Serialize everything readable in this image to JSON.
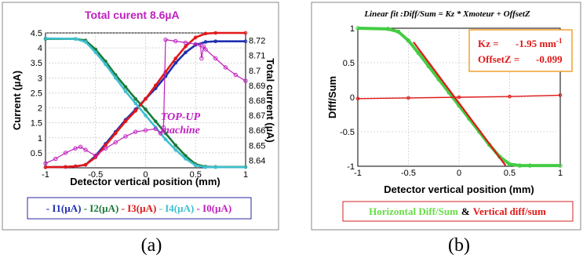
{
  "chart_data": [
    {
      "type": "line",
      "title": "Total curent 8.6µA",
      "xlabel": "Detector vertical position (mm)",
      "ylabel": "Current (µA)",
      "y2label": "Total current (µA)",
      "xlim": [
        -1,
        1
      ],
      "ylim": [
        0,
        4.5
      ],
      "y2lim": [
        8.635,
        8.725
      ],
      "x_ticks": [
        "-1",
        "-0.5",
        "0",
        "0.5",
        "1"
      ],
      "y_ticks": [
        "0.5",
        "1",
        "1.5",
        "2",
        "2.5",
        "3",
        "3.5",
        "4",
        "4.5"
      ],
      "y2_ticks": [
        "8.64",
        "8.65",
        "8.66",
        "8.67",
        "8.68",
        "8.69",
        "8.7",
        "8.71",
        "8.72"
      ],
      "annotations": [
        "TOP-UP",
        "machine"
      ],
      "legend": {
        "placement": "bottom-outside",
        "items": [
          "I1(µA)",
          "I2(µA)",
          "I3(µA)",
          "I4(µA)",
          "I0(µA)"
        ]
      },
      "series": [
        {
          "name": "I1(µA)",
          "color": "#1f2fb0",
          "axis": "left",
          "x": [
            -1,
            -0.8,
            -0.7,
            -0.6,
            -0.5,
            -0.4,
            -0.3,
            -0.2,
            -0.1,
            0,
            0.1,
            0.2,
            0.3,
            0.4,
            0.5,
            0.6,
            0.7,
            1
          ],
          "y": [
            0.02,
            0.03,
            0.05,
            0.1,
            0.4,
            0.8,
            1.2,
            1.6,
            1.95,
            2.3,
            2.65,
            3.05,
            3.5,
            3.85,
            4.1,
            4.2,
            4.22,
            4.22
          ]
        },
        {
          "name": "I2(µA)",
          "color": "#1a7a3a",
          "axis": "left",
          "x": [
            -1,
            -0.7,
            -0.6,
            -0.5,
            -0.4,
            -0.3,
            -0.2,
            -0.1,
            0,
            0.1,
            0.2,
            0.3,
            0.4,
            0.5,
            0.6,
            0.7,
            1
          ],
          "y": [
            4.3,
            4.3,
            4.25,
            3.95,
            3.55,
            3.1,
            2.7,
            2.3,
            1.95,
            1.55,
            1.15,
            0.75,
            0.4,
            0.12,
            0.04,
            0.03,
            0.03
          ]
        },
        {
          "name": "I3(µA)",
          "color": "#e01818",
          "axis": "left",
          "x": [
            -1,
            -0.8,
            -0.7,
            -0.6,
            -0.5,
            -0.4,
            -0.3,
            -0.2,
            -0.1,
            0,
            0.1,
            0.2,
            0.3,
            0.4,
            0.5,
            0.6,
            0.7,
            1
          ],
          "y": [
            0.02,
            0.03,
            0.05,
            0.1,
            0.35,
            0.75,
            1.15,
            1.55,
            1.9,
            2.3,
            2.75,
            3.2,
            3.65,
            4.05,
            4.35,
            4.48,
            4.5,
            4.5
          ]
        },
        {
          "name": "I4(µA)",
          "color": "#3fbfcf",
          "axis": "left",
          "x": [
            -1,
            -0.7,
            -0.6,
            -0.5,
            -0.4,
            -0.3,
            -0.2,
            -0.1,
            0,
            0.1,
            0.2,
            0.3,
            0.4,
            0.5,
            0.6,
            0.7,
            1
          ],
          "y": [
            4.32,
            4.3,
            4.2,
            3.85,
            3.45,
            3.0,
            2.55,
            2.15,
            1.75,
            1.35,
            0.95,
            0.6,
            0.3,
            0.08,
            0.02,
            0.02,
            0.02
          ]
        },
        {
          "name": "I0(µA)",
          "color": "#c020c0",
          "axis": "right",
          "x": [
            -1,
            -0.9,
            -0.8,
            -0.7,
            -0.65,
            -0.6,
            -0.5,
            -0.4,
            -0.3,
            -0.2,
            -0.1,
            0,
            0.1,
            0.15,
            0.18,
            0.2,
            0.3,
            0.4,
            0.5,
            0.55,
            0.56,
            0.58,
            0.6,
            0.7,
            0.8,
            0.9,
            1
          ],
          "y": [
            8.638,
            8.641,
            8.645,
            8.648,
            8.649,
            8.647,
            8.643,
            8.648,
            8.652,
            8.656,
            8.659,
            8.66,
            8.661,
            8.658,
            8.662,
            8.7205,
            8.7195,
            8.7185,
            8.7175,
            8.717,
            8.708,
            8.716,
            8.714,
            8.708,
            8.702,
            8.697,
            8.693
          ]
        }
      ]
    },
    {
      "type": "line",
      "title": "Linear fit :Diff/Sum = Kz * Xmoteur + OffsetZ",
      "xlabel": "Detector vertical position (mm)",
      "ylabel": "Dfff/Sum",
      "xlim": [
        -1,
        1
      ],
      "ylim": [
        -1,
        1
      ],
      "x_ticks": [
        "-1",
        "-0.5",
        "0",
        "0.5",
        "1"
      ],
      "y_ticks": [
        "-1",
        "-0.5",
        "0",
        "0.5",
        "1"
      ],
      "fit_box": {
        "kz_label": "Kz =",
        "kz_value": "-1.95 mm",
        "kz_unit_sup": "-1",
        "offset_label": "OffsetZ =",
        "offset_value": "-0.099"
      },
      "legend": {
        "placement": "bottom-outside",
        "items": [
          {
            "text": "Horizontal Diff/Sum",
            "color": "#66dd44"
          },
          {
            "text": "&",
            "color": "#000000"
          },
          {
            "text": "Vertical diff/sum",
            "color": "#e01818"
          }
        ]
      },
      "series": [
        {
          "name": "Horizontal Diff/Sum",
          "color": "#44cc44",
          "x": [
            -1,
            -0.7,
            -0.6,
            -0.5,
            -0.4,
            -0.3,
            -0.2,
            -0.1,
            0,
            0.1,
            0.2,
            0.3,
            0.4,
            0.5,
            0.6,
            0.7,
            1
          ],
          "y": [
            1,
            0.99,
            0.95,
            0.82,
            0.64,
            0.45,
            0.26,
            0.07,
            -0.12,
            -0.31,
            -0.5,
            -0.69,
            -0.86,
            -0.97,
            -0.99,
            -0.99,
            -0.99
          ]
        },
        {
          "name": "Vertical diff/sum",
          "color": "#e01818",
          "x": [
            -1,
            -0.5,
            0,
            0.5,
            1
          ],
          "y": [
            -0.02,
            -0.01,
            0.0,
            0.01,
            0.03
          ]
        },
        {
          "name": "fit",
          "color": "#e01818",
          "style": "fit",
          "x": [
            -0.45,
            0.46
          ],
          "y": [
            0.8,
            -0.99
          ]
        }
      ]
    }
  ],
  "captions": [
    "(a)",
    "(b)"
  ]
}
